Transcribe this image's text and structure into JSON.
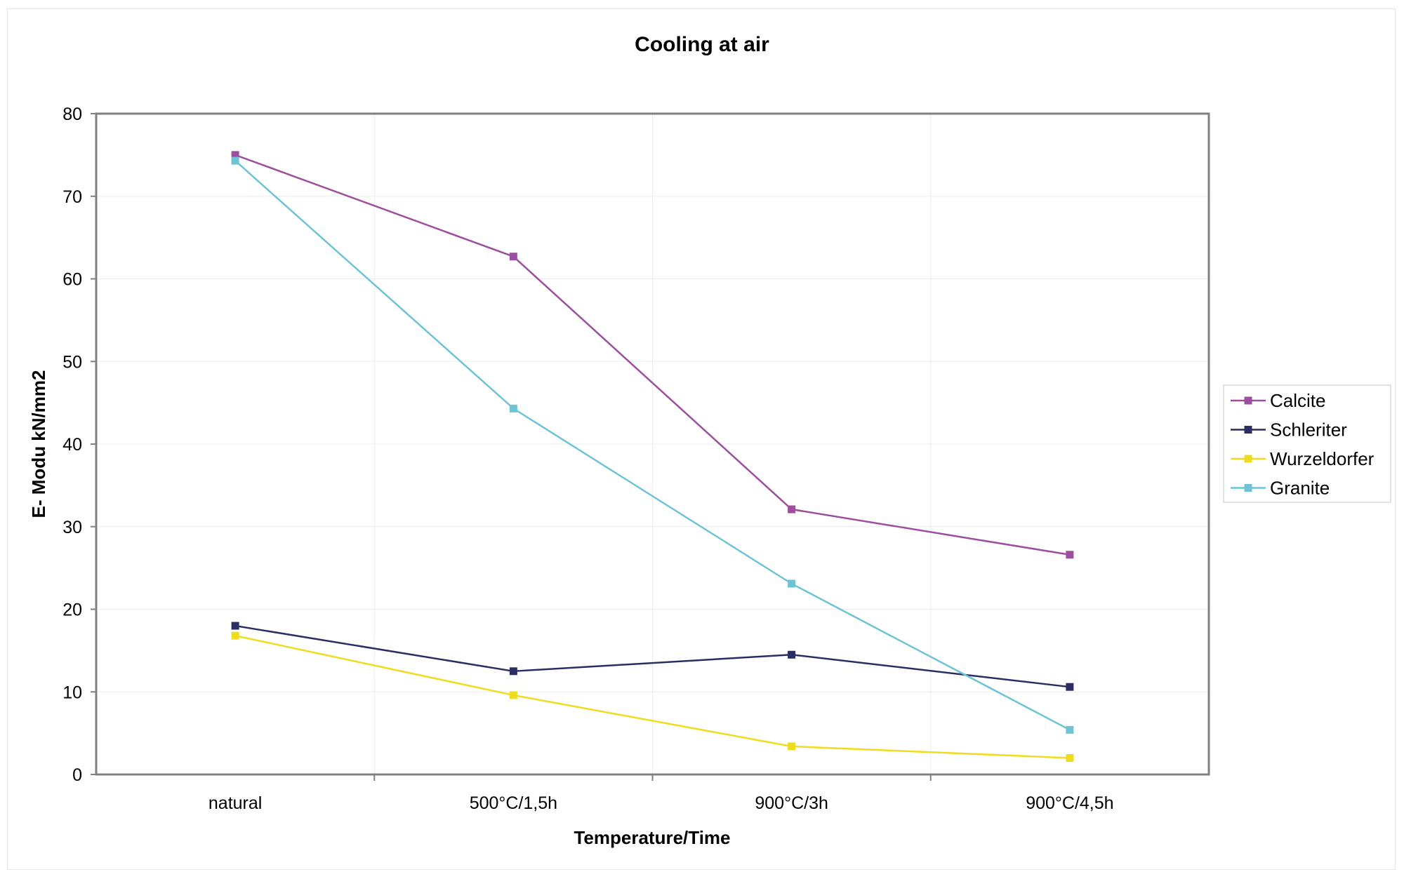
{
  "chart_data": {
    "type": "line",
    "title": "Cooling at air",
    "xlabel": "Temperature/Time",
    "ylabel": "E- Modu kN/mm2",
    "categories": [
      "natural",
      "500°C/1,5h",
      "900°C/3h",
      "900°C/4,5h"
    ],
    "ylim": [
      0,
      80
    ],
    "yticks": [
      0,
      10,
      20,
      30,
      40,
      50,
      60,
      70,
      80
    ],
    "grid": true,
    "legend_position": "right",
    "series": [
      {
        "name": "Calcite",
        "color": "#9b4f9e",
        "values": [
          75.0,
          62.7,
          32.1,
          26.6
        ]
      },
      {
        "name": "Schleriter",
        "color": "#2b2e63",
        "values": [
          18.0,
          12.5,
          14.5,
          10.6
        ]
      },
      {
        "name": "Wurzeldorfer",
        "color": "#f0dc1f",
        "values": [
          16.8,
          9.6,
          3.4,
          2.0
        ]
      },
      {
        "name": "Granite",
        "color": "#6ec3d6",
        "values": [
          74.3,
          44.3,
          23.1,
          5.4
        ]
      }
    ]
  }
}
